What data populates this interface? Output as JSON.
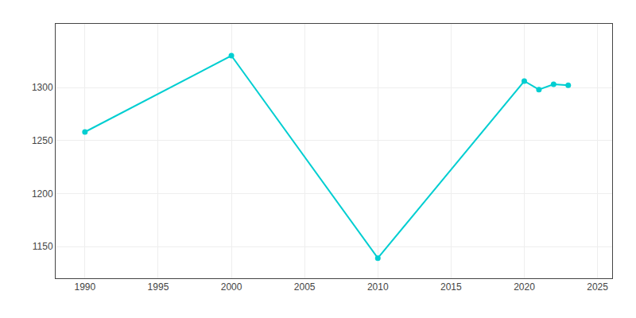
{
  "chart_data": {
    "type": "line",
    "x": [
      1990,
      2000,
      2010,
      2020,
      2021,
      2022,
      2023
    ],
    "values": [
      1258,
      1330,
      1139,
      1306,
      1298,
      1303,
      1302
    ],
    "color": "#00CED1",
    "marker": "circle",
    "xlim": [
      1988,
      2026
    ],
    "ylim": [
      1120,
      1360
    ],
    "xticks": [
      1990,
      1995,
      2000,
      2005,
      2010,
      2015,
      2020,
      2025
    ],
    "yticks": [
      1150,
      1200,
      1250,
      1300
    ],
    "grid": true
  }
}
